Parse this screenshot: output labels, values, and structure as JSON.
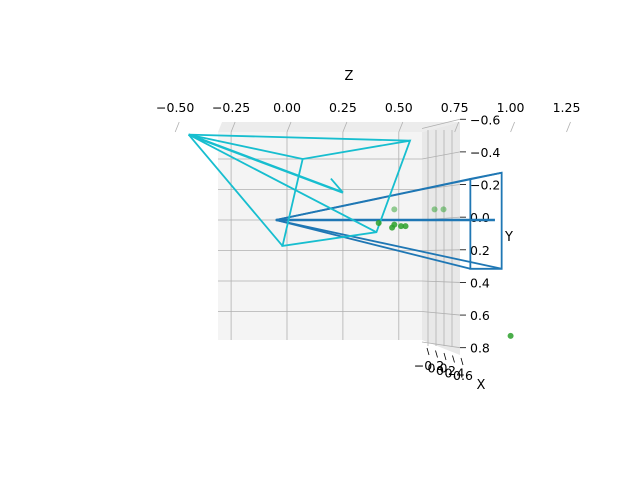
{
  "chart_data": {
    "type": "scatter",
    "projection": "3d",
    "title": "",
    "axes": {
      "z": {
        "label": "Z",
        "ticks": [
          "−0.50",
          "−0.25",
          "0.00",
          "0.25",
          "0.50",
          "0.75",
          "1.00",
          "1.25"
        ],
        "range": [
          -0.55,
          1.3
        ]
      },
      "y": {
        "label": "Y",
        "ticks": [
          "−0.6",
          "−0.4",
          "−0.2",
          "0.0",
          "0.2",
          "0.4",
          "0.6",
          "0.8"
        ],
        "range": [
          -0.6,
          0.85
        ],
        "inverted": true
      },
      "x": {
        "label": "X",
        "ticks": [
          "−0.2",
          "0.0",
          "0.2",
          "0.4",
          "0.6"
        ]
      }
    },
    "grid": true,
    "series": [
      {
        "kind": "camera-frustum",
        "color": "#1f77b4",
        "apex": {
          "z": -0.05,
          "y": 0.0
        },
        "corners": [
          {
            "z": 0.96,
            "y": -0.31
          },
          {
            "z": 0.96,
            "y": 0.32
          },
          {
            "z": 0.82,
            "y": 0.32
          },
          {
            "z": 0.82,
            "y": -0.27
          }
        ],
        "axis_tip": {
          "z": 0.93,
          "y": 0.0
        }
      },
      {
        "kind": "camera-frustum",
        "color": "#17becf",
        "apex": {
          "z": -0.44,
          "y": -0.56
        },
        "corners": [
          {
            "z": 0.55,
            "y": -0.52
          },
          {
            "z": 0.4,
            "y": 0.08
          },
          {
            "z": -0.02,
            "y": 0.17
          },
          {
            "z": 0.07,
            "y": -0.4
          }
        ],
        "axis_tip": {
          "z": 0.25,
          "y": -0.18
        }
      },
      {
        "kind": "points",
        "color": "#2ca02c",
        "points": [
          {
            "z": 0.48,
            "y": -0.07
          },
          {
            "z": 0.66,
            "y": -0.07
          },
          {
            "z": 0.7,
            "y": -0.07
          },
          {
            "z": 0.41,
            "y": 0.02
          },
          {
            "z": 0.48,
            "y": 0.03
          },
          {
            "z": 0.51,
            "y": 0.04
          },
          {
            "z": 0.53,
            "y": 0.04
          },
          {
            "z": 0.47,
            "y": 0.05
          },
          {
            "z": 1.0,
            "y": 0.76
          }
        ]
      }
    ]
  }
}
